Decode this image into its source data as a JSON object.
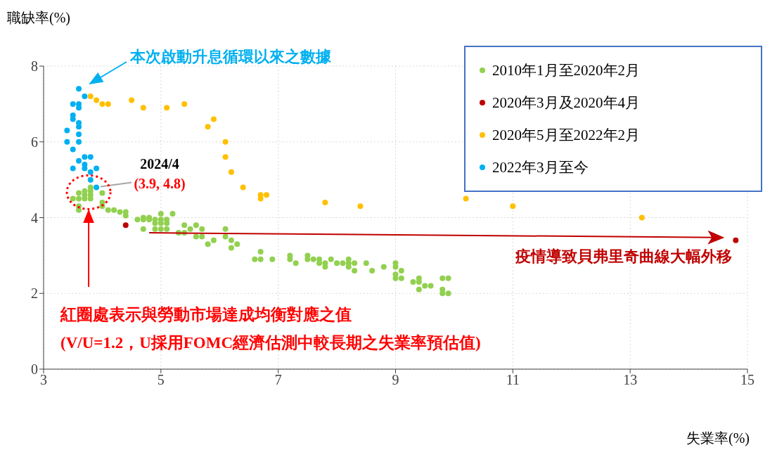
{
  "chart_data": {
    "type": "scatter",
    "xlabel": "失業率(%)",
    "ylabel": "職缺率(%)",
    "xlim": [
      3,
      15
    ],
    "xticks": [
      3,
      5,
      7,
      9,
      11,
      13,
      15
    ],
    "ylim": [
      0,
      8
    ],
    "yticks": [
      0,
      2,
      4,
      6,
      8
    ],
    "grid": true,
    "legend": "top right",
    "marker": "circle",
    "series": [
      {
        "name": "2010年1月至2020年2月",
        "color": "#92d050",
        "x": [
          3.5,
          3.6,
          3.6,
          3.6,
          3.6,
          3.7,
          3.7,
          3.7,
          3.8,
          3.8,
          3.8,
          3.8,
          4.0,
          4.0,
          4.0,
          4.1,
          4.2,
          4.3,
          4.4,
          4.4,
          4.6,
          4.7,
          4.7,
          4.7,
          4.8,
          4.8,
          4.9,
          4.9,
          4.9,
          5.0,
          5.0,
          5.0,
          5.0,
          5.1,
          5.1,
          5.1,
          5.2,
          5.3,
          5.4,
          5.4,
          5.5,
          5.6,
          5.6,
          5.7,
          5.7,
          5.8,
          5.9,
          6.1,
          6.1,
          6.2,
          6.2,
          6.3,
          6.6,
          6.7,
          6.7,
          6.9,
          7.2,
          7.2,
          7.3,
          7.5,
          7.5,
          7.6,
          7.7,
          7.7,
          7.8,
          7.8,
          7.9,
          8.0,
          8.1,
          8.2,
          8.2,
          8.2,
          8.3,
          8.3,
          8.5,
          8.6,
          8.8,
          9.0,
          9.0,
          9.0,
          9.0,
          9.1,
          9.1,
          9.3,
          9.4,
          9.4,
          9.4,
          9.5,
          9.6,
          9.8,
          9.8,
          9.8,
          9.9,
          9.9
        ],
        "values": [
          4.5,
          4.3,
          4.2,
          4.5,
          4.65,
          4.5,
          4.6,
          4.7,
          4.5,
          4.6,
          4.7,
          4.8,
          4.65,
          4.4,
          4.3,
          4.2,
          4.2,
          4.15,
          4.15,
          4.05,
          3.95,
          4.0,
          3.95,
          3.7,
          4.0,
          3.95,
          3.95,
          3.85,
          3.7,
          4.1,
          3.95,
          3.85,
          3.7,
          3.95,
          3.85,
          3.7,
          4.1,
          3.6,
          3.8,
          3.6,
          3.7,
          3.8,
          3.5,
          3.7,
          3.5,
          3.3,
          3.4,
          3.7,
          3.5,
          3.4,
          3.2,
          3.3,
          2.9,
          3.1,
          2.9,
          2.9,
          3.0,
          2.9,
          2.8,
          3.0,
          2.9,
          2.9,
          2.9,
          2.8,
          2.8,
          2.7,
          2.9,
          2.8,
          2.8,
          2.9,
          2.8,
          2.7,
          2.8,
          2.6,
          2.8,
          2.6,
          2.7,
          2.8,
          2.7,
          2.5,
          2.4,
          2.6,
          2.4,
          2.3,
          2.4,
          2.3,
          2.1,
          2.2,
          2.2,
          2.4,
          2.1,
          2.0,
          2.4,
          2.0
        ]
      },
      {
        "name": "2020年3月及2020年4月",
        "color": "#c00000",
        "x": [
          4.4,
          14.8
        ],
        "values": [
          3.8,
          3.4
        ]
      },
      {
        "name": "2020年5月至2022年2月",
        "color": "#ffc000",
        "x": [
          3.8,
          3.9,
          4.0,
          4.1,
          4.5,
          4.7,
          5.1,
          5.4,
          5.8,
          5.9,
          6.1,
          6.1,
          6.2,
          6.4,
          6.7,
          6.8,
          6.7,
          7.8,
          8.4,
          10.2,
          11.0,
          13.2
        ],
        "values": [
          7.2,
          7.1,
          7.0,
          7.0,
          7.1,
          6.9,
          6.9,
          7.0,
          6.4,
          6.6,
          6.0,
          5.6,
          5.2,
          4.8,
          4.6,
          4.6,
          4.5,
          4.4,
          4.3,
          4.5,
          4.3,
          4.0
        ]
      },
      {
        "name": "2022年3月至今",
        "color": "#00b0f0",
        "x": [
          3.6,
          3.7,
          3.5,
          3.6,
          3.6,
          3.5,
          3.5,
          3.6,
          3.6,
          3.4,
          3.6,
          3.4,
          3.6,
          3.5,
          3.6,
          3.7,
          3.8,
          3.7,
          3.7,
          3.5,
          3.9,
          3.8,
          3.8,
          3.9
        ],
        "values": [
          7.4,
          7.2,
          7.0,
          7.0,
          6.9,
          6.7,
          6.6,
          6.5,
          6.4,
          6.3,
          6.2,
          6.0,
          6.0,
          5.8,
          5.5,
          5.6,
          5.6,
          5.4,
          5.3,
          5.3,
          5.3,
          5.2,
          5.0,
          4.8
        ]
      }
    ],
    "annotations": [
      "本次啟動升息循環以來之數據",
      {
        "text": "2024/4",
        "x": 3.9,
        "y": 4.8
      },
      "(3.9, 4.8)",
      "紅圈處表示與勞動市場達成均衡對應之值",
      "(V/U=1.2，U採用FOMC經濟估測中較長期之失業率預估值)",
      "疫情導致貝弗里奇曲線大幅外移"
    ]
  }
}
